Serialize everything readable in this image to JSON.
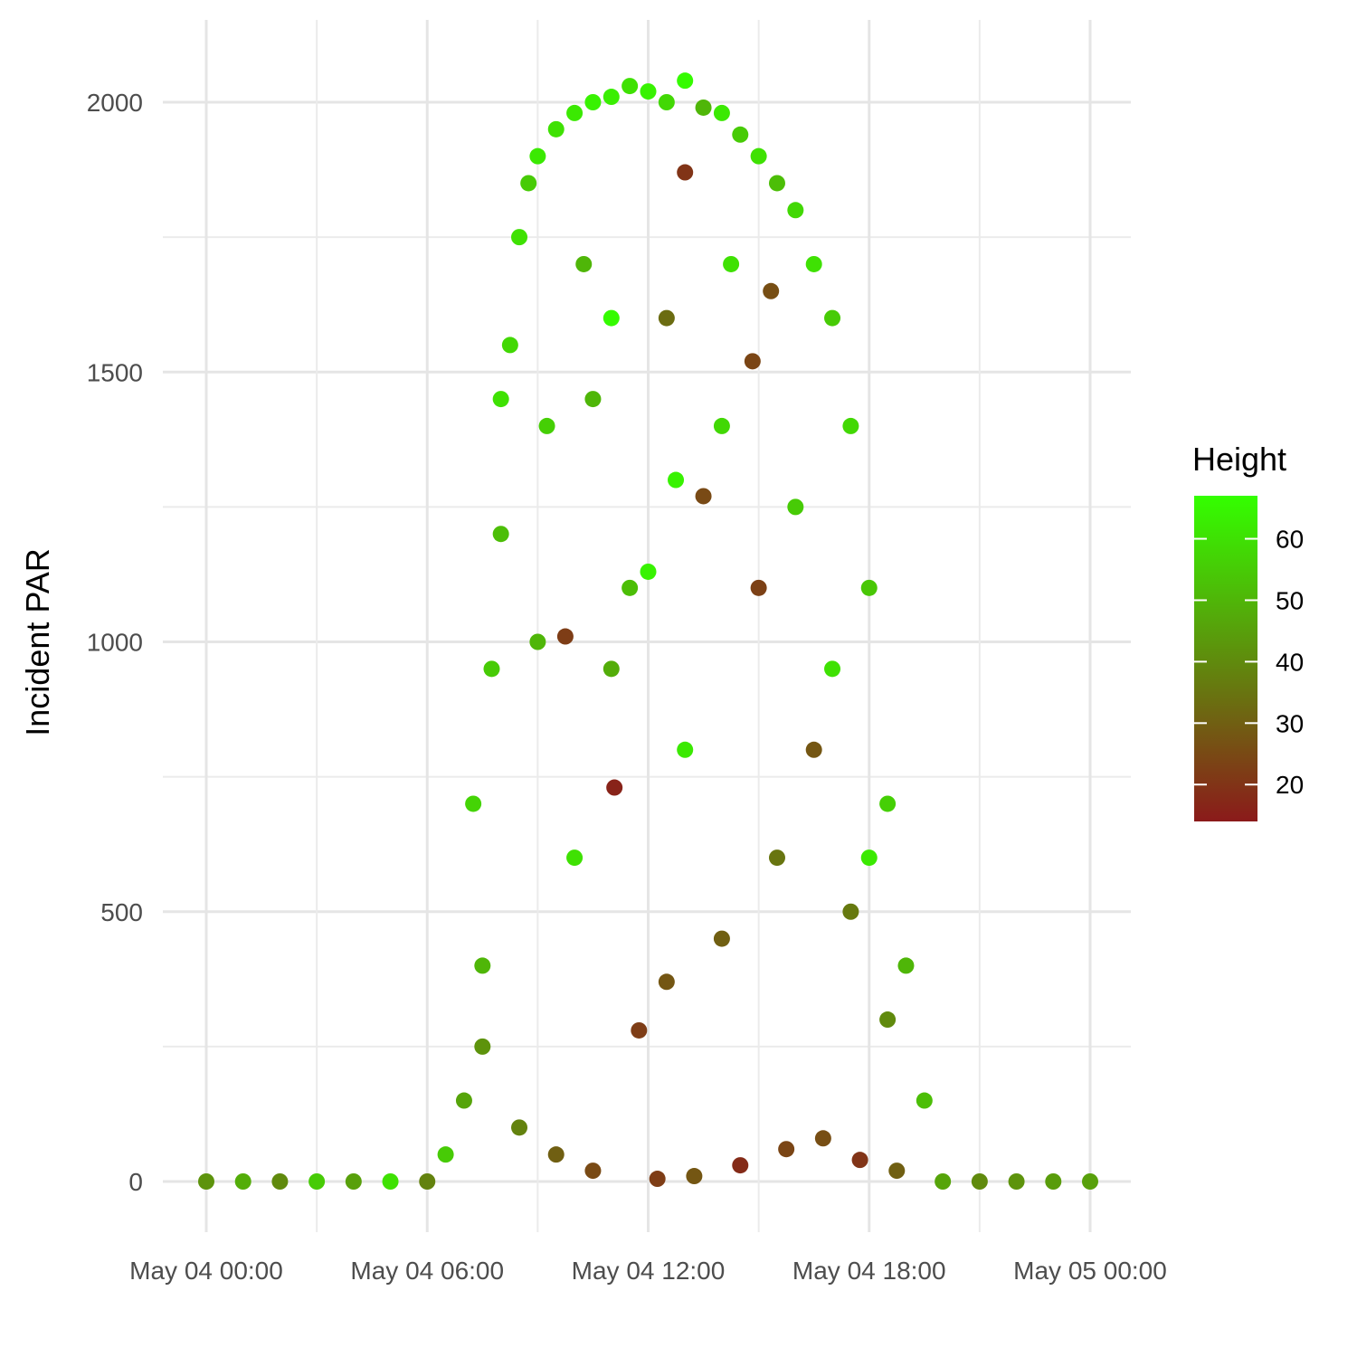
{
  "chart_data": {
    "type": "scatter",
    "title": "",
    "xlabel": "",
    "ylabel": "Incident PAR",
    "grid": true,
    "legend_position": "right",
    "x_ticks": [
      "May 04 00:00",
      "May 04 06:00",
      "May 04 12:00",
      "May 04 18:00",
      "May 05 00:00"
    ],
    "x_range": [
      "May 04 00:00",
      "May 05 00:00"
    ],
    "y_ticks": [
      0,
      500,
      1000,
      1500,
      2000
    ],
    "ylim": [
      -90,
      2150
    ],
    "color_scale": {
      "title": "Height",
      "ticks": [
        20,
        30,
        40,
        50,
        60
      ],
      "range": [
        14,
        67
      ],
      "low_color": "#8b1a1a",
      "high_color": "#33ff00"
    },
    "series": [
      {
        "points": [
          [
            "May 04 00:00",
            0,
            42
          ],
          [
            "May 04 01:00",
            0,
            48
          ],
          [
            "May 04 02:00",
            0,
            40
          ],
          [
            "May 04 03:00",
            0,
            55
          ],
          [
            "May 04 04:00",
            0,
            45
          ],
          [
            "May 04 05:00",
            0,
            60
          ],
          [
            "May 04 06:00",
            0,
            38
          ],
          [
            "May 04 06:30",
            50,
            55
          ],
          [
            "May 04 07:00",
            150,
            46
          ],
          [
            "May 04 07:30",
            400,
            50
          ],
          [
            "May 04 07:45",
            950,
            55
          ],
          [
            "May 04 08:00",
            1200,
            52
          ],
          [
            "May 04 08:15",
            1550,
            58
          ],
          [
            "May 04 08:30",
            1750,
            60
          ],
          [
            "May 04 08:45",
            1850,
            55
          ],
          [
            "May 04 09:00",
            1900,
            62
          ],
          [
            "May 04 09:30",
            1950,
            60
          ],
          [
            "May 04 10:00",
            1980,
            62
          ],
          [
            "May 04 10:30",
            2000,
            64
          ],
          [
            "May 04 11:00",
            2010,
            63
          ],
          [
            "May 04 11:30",
            2030,
            60
          ],
          [
            "May 04 12:00",
            2020,
            64
          ],
          [
            "May 04 12:30",
            2000,
            58
          ],
          [
            "May 04 13:00",
            2040,
            66
          ],
          [
            "May 04 13:30",
            1990,
            50
          ],
          [
            "May 04 14:00",
            1980,
            62
          ],
          [
            "May 04 14:30",
            1940,
            55
          ],
          [
            "May 04 15:00",
            1900,
            60
          ],
          [
            "May 04 15:30",
            1850,
            52
          ],
          [
            "May 04 16:00",
            1800,
            58
          ],
          [
            "May 04 16:30",
            1700,
            60
          ],
          [
            "May 04 17:00",
            1600,
            55
          ],
          [
            "May 04 17:30",
            1400,
            58
          ],
          [
            "May 04 18:00",
            1100,
            54
          ],
          [
            "May 04 18:30",
            700,
            56
          ],
          [
            "May 04 19:00",
            400,
            50
          ],
          [
            "May 04 19:30",
            150,
            52
          ],
          [
            "May 04 20:00",
            0,
            46
          ],
          [
            "May 04 21:00",
            0,
            40
          ],
          [
            "May 04 22:00",
            0,
            42
          ],
          [
            "May 04 23:00",
            0,
            44
          ],
          [
            "May 05 00:00",
            0,
            45
          ],
          [
            "May 04 09:00",
            1000,
            50
          ],
          [
            "May 04 09:45",
            1010,
            22
          ],
          [
            "May 04 11:05",
            730,
            16
          ],
          [
            "May 04 11:00",
            950,
            48
          ],
          [
            "May 04 12:30",
            1600,
            33
          ],
          [
            "May 04 13:30",
            1270,
            25
          ],
          [
            "May 04 14:50",
            1520,
            24
          ],
          [
            "May 04 15:00",
            1100,
            23
          ],
          [
            "May 04 15:20",
            1650,
            26
          ],
          [
            "May 04 10:30",
            1450,
            50
          ],
          [
            "May 04 12:00",
            1130,
            64
          ],
          [
            "May 04 11:00",
            1600,
            66
          ],
          [
            "May 04 13:00",
            1870,
            20
          ],
          [
            "May 04 10:00",
            600,
            60
          ],
          [
            "May 04 12:30",
            370,
            28
          ],
          [
            "May 04 11:45",
            280,
            22
          ],
          [
            "May 04 14:00",
            450,
            30
          ],
          [
            "May 04 15:30",
            600,
            35
          ],
          [
            "May 04 16:30",
            800,
            28
          ],
          [
            "May 04 17:30",
            500,
            36
          ],
          [
            "May 04 18:30",
            300,
            40
          ],
          [
            "May 04 07:30",
            250,
            42
          ],
          [
            "May 04 08:30",
            100,
            38
          ],
          [
            "May 04 09:30",
            50,
            30
          ],
          [
            "May 04 10:30",
            20,
            25
          ],
          [
            "May 04 12:15",
            5,
            22
          ],
          [
            "May 04 13:15",
            10,
            28
          ],
          [
            "May 04 14:30",
            30,
            18
          ],
          [
            "May 04 15:45",
            60,
            24
          ],
          [
            "May 04 16:45",
            80,
            26
          ],
          [
            "May 04 17:45",
            40,
            20
          ],
          [
            "May 04 18:45",
            20,
            30
          ],
          [
            "May 04 13:00",
            800,
            62
          ],
          [
            "May 04 14:00",
            1400,
            58
          ],
          [
            "May 04 16:00",
            1250,
            55
          ],
          [
            "May 04 17:00",
            950,
            60
          ],
          [
            "May 04 18:00",
            600,
            62
          ],
          [
            "May 04 07:15",
            700,
            57
          ],
          [
            "May 04 08:00",
            1450,
            60
          ],
          [
            "May 04 09:15",
            1400,
            56
          ],
          [
            "May 04 10:15",
            1700,
            50
          ],
          [
            "May 04 11:30",
            1100,
            52
          ],
          [
            "May 04 12:45",
            1300,
            64
          ],
          [
            "May 04 14:15",
            1700,
            60
          ]
        ]
      }
    ]
  }
}
